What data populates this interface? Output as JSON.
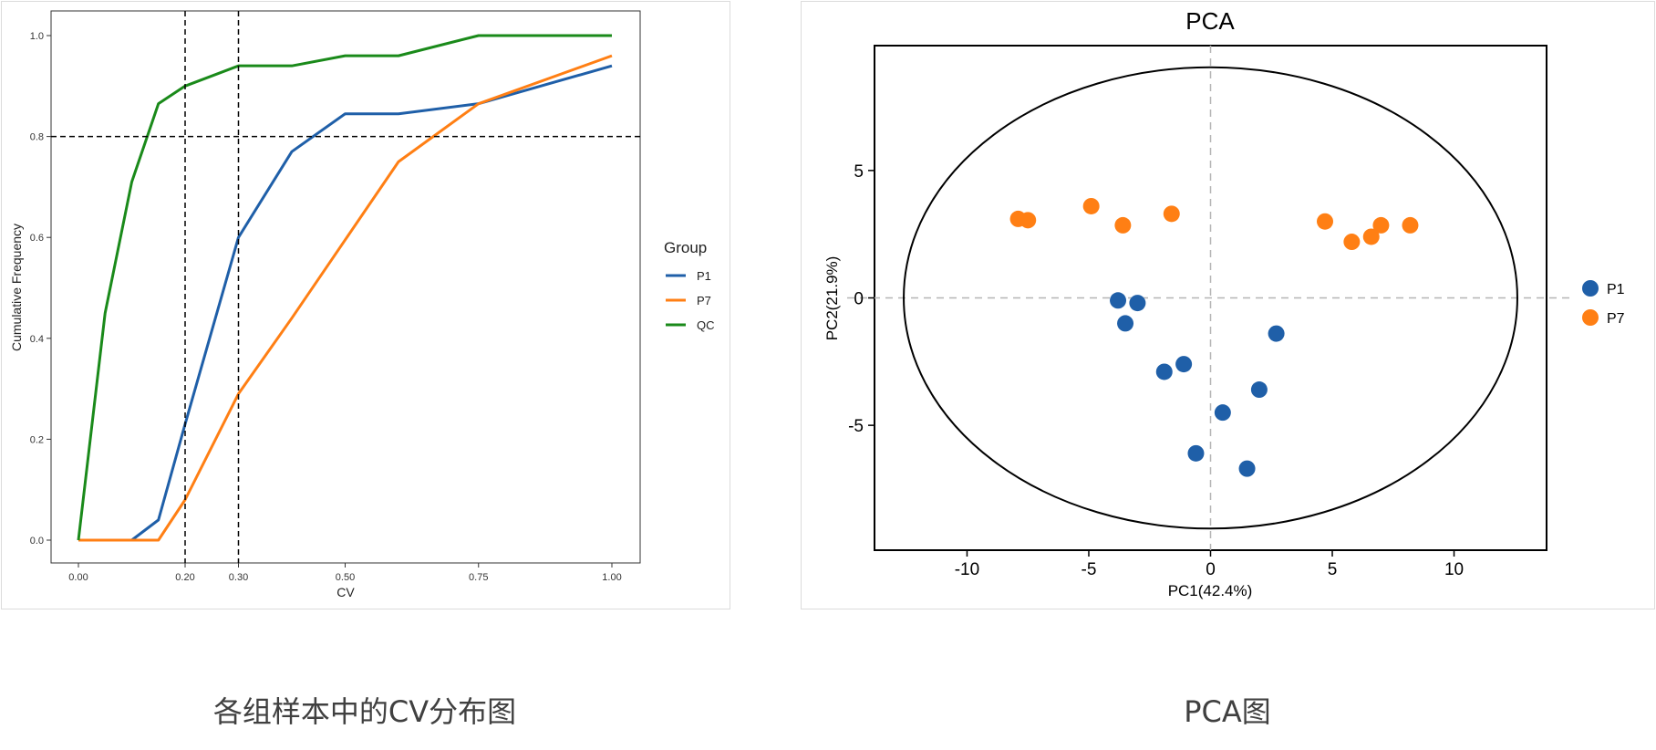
{
  "colors": {
    "P1": "#1f5fa8",
    "P7": "#ff7f14",
    "QC": "#1a8a1a"
  },
  "captions": {
    "cv": "各组样本中的CV分布图",
    "pca": "PCA图"
  },
  "chart_data": [
    {
      "type": "line",
      "xlabel": "CV",
      "ylabel": "Cumulative Frequency",
      "xlim": [
        0,
        1.0
      ],
      "ylim": [
        0,
        1.0
      ],
      "x_ticks": [
        "0.00",
        "0.20",
        "0.30",
        "0.50",
        "0.75",
        "1.00"
      ],
      "y_ticks": [
        "0.0",
        "0.2",
        "0.4",
        "0.6",
        "0.8",
        "1.0"
      ],
      "reference_lines": {
        "vertical": [
          0.2,
          0.3
        ],
        "horizontal": [
          0.8
        ]
      },
      "grid": false,
      "legend": {
        "title": "Group",
        "position": "right"
      },
      "series": [
        {
          "name": "P1",
          "color": "#1f5fa8",
          "x": [
            0,
            0.1,
            0.15,
            0.2,
            0.3,
            0.4,
            0.5,
            0.6,
            0.75,
            1.0
          ],
          "y": [
            0,
            0,
            0.04,
            0.23,
            0.6,
            0.77,
            0.845,
            0.845,
            0.865,
            0.94
          ]
        },
        {
          "name": "P7",
          "color": "#ff7f14",
          "x": [
            0,
            0.15,
            0.2,
            0.3,
            0.4,
            0.5,
            0.6,
            0.75,
            1.0
          ],
          "y": [
            0,
            0,
            0.08,
            0.29,
            0.44,
            0.595,
            0.75,
            0.865,
            0.96
          ]
        },
        {
          "name": "QC",
          "color": "#1a8a1a",
          "x": [
            0,
            0.05,
            0.1,
            0.15,
            0.2,
            0.3,
            0.4,
            0.5,
            0.6,
            0.75,
            1.0
          ],
          "y": [
            0,
            0.45,
            0.71,
            0.865,
            0.9,
            0.94,
            0.94,
            0.96,
            0.96,
            1.0,
            1.0
          ]
        }
      ]
    },
    {
      "type": "scatter",
      "title": "PCA",
      "xlabel": "PC1(42.4%)",
      "ylabel": "PC2(21.9%)",
      "xlim": [
        -13.8,
        13.8
      ],
      "ylim": [
        -9.9,
        9.9
      ],
      "x_ticks": [
        -10,
        -5,
        0,
        5,
        10
      ],
      "y_ticks": [
        -5,
        0,
        5
      ],
      "reference_lines": {
        "vertical": [
          0
        ],
        "horizontal": [
          0
        ]
      },
      "ellipse": {
        "cx": 0,
        "cy": 0,
        "rx": 12.6,
        "ry": 9.05
      },
      "grid": false,
      "legend": {
        "position": "right"
      },
      "series": [
        {
          "name": "P1",
          "color": "#1f5fa8",
          "x": [
            -3.8,
            -3.5,
            -3.0,
            -1.9,
            -1.1,
            -0.6,
            0.5,
            1.5,
            2.0,
            2.7
          ],
          "y": [
            -0.1,
            -1.0,
            -0.2,
            -2.9,
            -2.6,
            -6.1,
            -4.5,
            -6.7,
            -3.6,
            -1.4
          ]
        },
        {
          "name": "P7",
          "color": "#ff7f14",
          "x": [
            -7.9,
            -7.5,
            -4.9,
            -3.6,
            -1.6,
            4.7,
            5.8,
            6.6,
            7.0,
            8.2
          ],
          "y": [
            3.1,
            3.05,
            3.6,
            2.85,
            3.3,
            3.0,
            2.2,
            2.4,
            2.85,
            2.85
          ]
        }
      ]
    }
  ]
}
